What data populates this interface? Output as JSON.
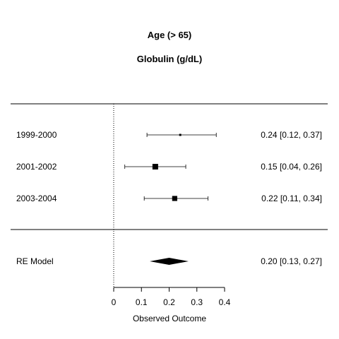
{
  "chart_data": {
    "type": "forest",
    "title": "Age (> 65)",
    "subtitle": "Globulin (g/dL)",
    "xlabel": "Observed Outcome",
    "xlim": [
      0,
      0.4
    ],
    "xticks": [
      0,
      0.1,
      0.2,
      0.3,
      0.4
    ],
    "xtick_labels": [
      "0",
      "0.1",
      "0.2",
      "0.3",
      "0.4"
    ],
    "reference_line": 0,
    "studies": [
      {
        "label": "1999-2000",
        "estimate": 0.24,
        "lower": 0.12,
        "upper": 0.37,
        "ci_text": "0.24 [0.12, 0.37]",
        "weight": 0.1
      },
      {
        "label": "2001-2002",
        "estimate": 0.15,
        "lower": 0.04,
        "upper": 0.26,
        "ci_text": "0.15 [0.04, 0.26]",
        "weight": 1.0
      },
      {
        "label": "2003-2004",
        "estimate": 0.22,
        "lower": 0.11,
        "upper": 0.34,
        "ci_text": "0.22 [0.11, 0.34]",
        "weight": 0.85
      }
    ],
    "summary": {
      "label": "RE Model",
      "estimate": 0.2,
      "lower": 0.13,
      "upper": 0.27,
      "ci_text": "0.20 [0.13, 0.27]"
    }
  }
}
